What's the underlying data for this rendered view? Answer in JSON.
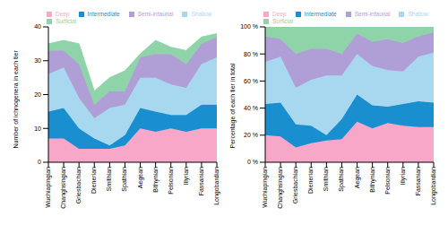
{
  "chart_data": [
    {
      "type": "area",
      "stacked": true,
      "ylabel": "Number of ichnogenera in each tier",
      "legend": "top",
      "categories": [
        "Wuchiapingian",
        "Changhsingian",
        "Griesbachian",
        "Dienerian",
        "Smithian",
        "Spathian",
        "Aegean",
        "Bithynian",
        "Pelsonian",
        "Illyrian",
        "Fassanian",
        "Longobardian"
      ],
      "series": [
        {
          "name": "Deep",
          "color": "#f7a8c8",
          "values": [
            7,
            7,
            4,
            4,
            4,
            5,
            10,
            9,
            10,
            9,
            10,
            10
          ]
        },
        {
          "name": "Intermediate",
          "color": "#1a8fd0",
          "values": [
            8,
            9,
            6,
            3,
            1,
            3,
            6,
            6,
            4,
            5,
            7,
            7
          ]
        },
        {
          "name": "Shallow",
          "color": "#a8d8f0",
          "values": [
            11,
            12,
            9,
            6,
            11,
            9,
            9,
            10,
            9,
            8,
            12,
            14
          ]
        },
        {
          "name": "Semi-infaunal",
          "color": "#b09fd6",
          "values": [
            7,
            5,
            10,
            4,
            5,
            4,
            6,
            7,
            9,
            7,
            6,
            6
          ]
        },
        {
          "name": "Surficial",
          "color": "#8fd4a8",
          "values": [
            2,
            3,
            6,
            4,
            4,
            6,
            1,
            4,
            2,
            4,
            2,
            1
          ]
        }
      ],
      "ylim": [
        0,
        40
      ],
      "yticks": [
        0,
        10,
        20,
        30,
        40
      ]
    },
    {
      "type": "area",
      "stacked": true,
      "ylabel": "Percentage of each tier in total",
      "legend": "top",
      "categories": [
        "Wuchiapingian",
        "Changhsingian",
        "Griesbachian",
        "Dienerian",
        "Smithian",
        "Spathian",
        "Aegean",
        "Bithynian",
        "Pelsonian",
        "Illyrian",
        "Fassanian",
        "Longobardian"
      ],
      "series": [
        {
          "name": "Deep",
          "color": "#f7a8c8",
          "values": [
            20,
            19,
            11,
            14,
            16,
            17,
            30,
            25,
            29,
            27,
            26,
            26
          ]
        },
        {
          "name": "Intermediate",
          "color": "#1a8fd0",
          "values": [
            23,
            25,
            17,
            13,
            4,
            15,
            20,
            17,
            12,
            16,
            19,
            18
          ]
        },
        {
          "name": "Shallow",
          "color": "#a8d8f0",
          "values": [
            31,
            34,
            27,
            34,
            44,
            32,
            30,
            29,
            27,
            24,
            33,
            37
          ]
        },
        {
          "name": "Semi-infaunal",
          "color": "#b09fd6",
          "values": [
            19,
            13,
            25,
            23,
            20,
            16,
            15,
            18,
            23,
            21,
            15,
            15
          ]
        },
        {
          "name": "Surficial",
          "color": "#8fd4a8",
          "values": [
            7,
            9,
            20,
            16,
            16,
            20,
            5,
            11,
            9,
            12,
            7,
            4
          ]
        }
      ],
      "ylim": [
        0,
        100
      ],
      "yticks": [
        {
          "value": 0,
          "label": "0 %"
        },
        {
          "value": 20,
          "label": "20 %"
        },
        {
          "value": 40,
          "label": "40 %"
        },
        {
          "value": 60,
          "label": "60 %"
        },
        {
          "value": 80,
          "label": "80 %"
        },
        {
          "value": 100,
          "label": "100 %"
        }
      ]
    }
  ]
}
